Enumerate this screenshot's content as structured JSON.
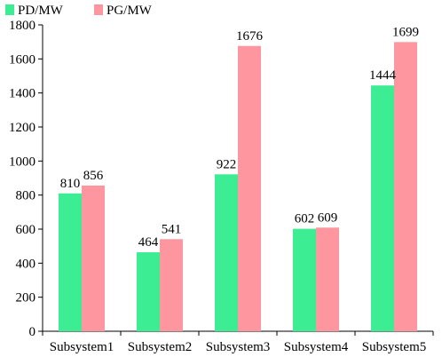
{
  "chart_data": {
    "type": "bar",
    "categories": [
      "Subsystem1",
      "Subsystem2",
      "Subsystem3",
      "Subsystem4",
      "Subsystem5"
    ],
    "series": [
      {
        "name": "PD/MW",
        "values": [
          810,
          464,
          922,
          602,
          1444
        ],
        "color": "#3ded93"
      },
      {
        "name": "PG/MW",
        "values": [
          856,
          541,
          1676,
          609,
          1699
        ],
        "color": "#fd969f"
      }
    ],
    "ylim": [
      0,
      1800
    ],
    "yticks": [
      0,
      200,
      400,
      600,
      800,
      1000,
      1200,
      1400,
      1600,
      1800
    ],
    "title": "",
    "xlabel": "",
    "ylabel": "",
    "grid": false,
    "legend_position": "top-left",
    "data_labels": true
  }
}
